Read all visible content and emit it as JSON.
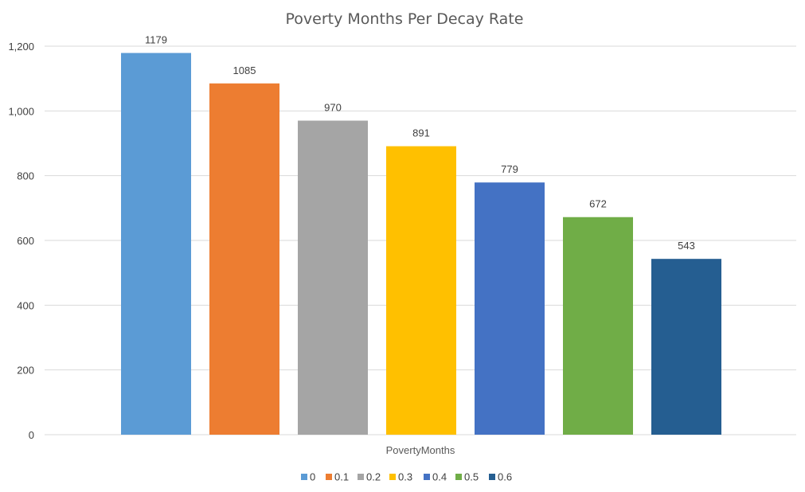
{
  "chart_data": {
    "type": "bar",
    "title": "Poverty Months Per Decay Rate",
    "xlabel": "",
    "ylabel": "",
    "categories": [
      "PovertyMonths"
    ],
    "category_label": "PovertyMonths",
    "ylim": [
      0,
      1200
    ],
    "yticks": [
      0,
      200,
      400,
      600,
      800,
      1000,
      1200
    ],
    "ytick_labels": [
      "0",
      "200",
      "400",
      "600",
      "800",
      "1,000",
      "1,200"
    ],
    "grid": true,
    "legend_position": "bottom",
    "series": [
      {
        "name": "0",
        "values": [
          1179
        ],
        "label": "1179",
        "color": "#5b9bd5"
      },
      {
        "name": "0.1",
        "values": [
          1085
        ],
        "label": "1085",
        "color": "#ed7d31"
      },
      {
        "name": "0.2",
        "values": [
          970
        ],
        "label": "970",
        "color": "#a5a5a5"
      },
      {
        "name": "0.3",
        "values": [
          891
        ],
        "label": "891",
        "color": "#ffc000"
      },
      {
        "name": "0.4",
        "values": [
          779
        ],
        "label": "779",
        "color": "#4472c4"
      },
      {
        "name": "0.5",
        "values": [
          672
        ],
        "label": "672",
        "color": "#70ad47"
      },
      {
        "name": "0.6",
        "values": [
          543
        ],
        "label": "543",
        "color": "#255e91"
      }
    ]
  }
}
